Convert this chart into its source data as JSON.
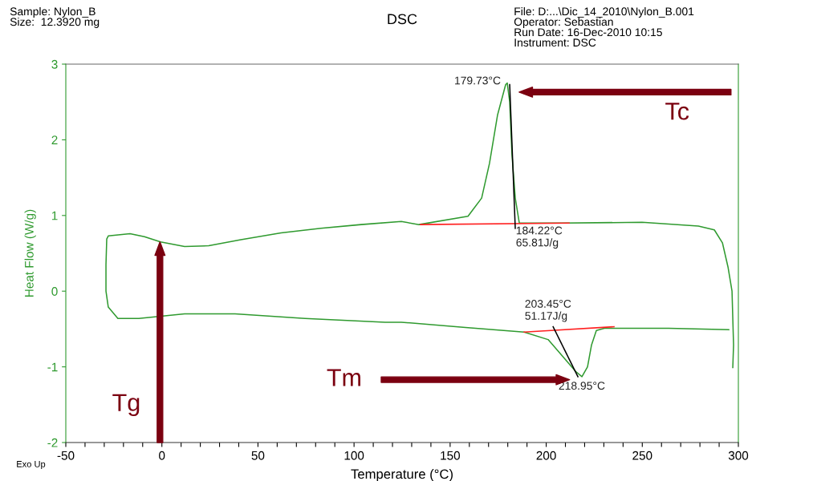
{
  "chart_data": {
    "type": "line",
    "title": "DSC",
    "xlabel": "Temperature (°C)",
    "ylabel": "Heat Flow (W/g)",
    "xlim": [
      -50,
      300
    ],
    "ylim": [
      -2,
      3
    ],
    "xticks": [
      -50,
      {
        "value": -40,
        "label": null
      },
      {
        "value": -30,
        "label": null
      },
      {
        "value": -20,
        "label": null
      },
      {
        "value": -10,
        "label": null
      },
      0,
      {
        "value": 10,
        "label": null
      },
      {
        "value": 20,
        "label": null
      },
      {
        "value": 30,
        "label": null
      },
      {
        "value": 40,
        "label": null
      },
      50,
      {
        "value": 60,
        "label": null
      },
      {
        "value": 70,
        "label": null
      },
      {
        "value": 80,
        "label": null
      },
      {
        "value": 90,
        "label": null
      },
      100,
      {
        "value": 110,
        "label": null
      },
      {
        "value": 120,
        "label": null
      },
      {
        "value": 130,
        "label": null
      },
      {
        "value": 140,
        "label": null
      },
      150,
      {
        "value": 160,
        "label": null
      },
      {
        "value": 170,
        "label": null
      },
      {
        "value": 180,
        "label": null
      },
      {
        "value": 190,
        "label": null
      },
      200,
      {
        "value": 210,
        "label": null
      },
      {
        "value": 220,
        "label": null
      },
      {
        "value": 230,
        "label": null
      },
      {
        "value": 240,
        "label": null
      },
      250,
      {
        "value": 260,
        "label": null
      },
      {
        "value": 270,
        "label": null
      },
      {
        "value": 280,
        "label": null
      },
      {
        "value": 290,
        "label": null
      },
      300
    ],
    "yticks": [
      -2,
      -1,
      0,
      1,
      2,
      3
    ],
    "grid": false,
    "marker": "none",
    "line_style": "solid",
    "series": [
      {
        "color": "#2f9a2f",
        "x": [
          295.0,
          263.7,
          230.3,
          226.1,
          223.6,
          221.5,
          218.6,
          215.3,
          208.2,
          201.0,
          188.5,
          158.0,
          124.6,
          116.2,
          74.5,
          38.1,
          11.8,
          -12.0,
          -22.9,
          -27.9,
          -29.1,
          -29.1,
          -28.7,
          -27.9,
          -16.6,
          -9.1,
          -0.7,
          11.8,
          24.4,
          41.1,
          62.0,
          82.8,
          103.7,
          124.6,
          133.8,
          159.3,
          166.4,
          170.5,
          174.7,
          178.9,
          179.73,
          181.0,
          182.2,
          183.9,
          186.0,
          208.2,
          249.9,
          279.2,
          287.5,
          291.7,
          294.6,
          296.7,
          297.5,
          297.1
        ],
        "values": [
          -0.51,
          -0.49,
          -0.49,
          -0.52,
          -0.71,
          -1.0,
          -1.13,
          -1.06,
          -0.85,
          -0.64,
          -0.54,
          -0.48,
          -0.41,
          -0.41,
          -0.36,
          -0.3,
          -0.3,
          -0.36,
          -0.36,
          -0.21,
          0.0,
          0.35,
          0.69,
          0.73,
          0.76,
          0.72,
          0.65,
          0.59,
          0.6,
          0.68,
          0.77,
          0.83,
          0.88,
          0.92,
          0.88,
          0.99,
          1.23,
          1.69,
          2.33,
          2.73,
          2.75,
          2.5,
          1.8,
          1.23,
          0.9,
          0.9,
          0.91,
          0.86,
          0.81,
          0.64,
          0.32,
          0.0,
          -0.71,
          -1.01
        ]
      },
      {
        "color": "#ff2020",
        "x": [
          134.6,
          211.9
        ],
        "values": [
          0.88,
          0.9
        ]
      },
      {
        "color": "#ff2020",
        "x": [
          188.5,
          235.3
        ],
        "values": [
          -0.54,
          -0.47
        ]
      },
      {
        "color": "#000000",
        "x": [
          181.0,
          183.9
        ],
        "values": [
          2.73,
          0.83
        ]
      },
      {
        "color": "#000000",
        "x": [
          203.6,
          216.5
        ],
        "values": [
          -0.47,
          -1.13
        ]
      }
    ],
    "annotations": [
      {
        "text": "179.73°C",
        "x": 179.73,
        "y": 2.75
      },
      {
        "text": "184.22°C\n65.81J/g",
        "x": 184.22,
        "y": 0.9
      },
      {
        "text": "203.45°C\n51.17J/g",
        "x": 203.45,
        "y": -0.47
      },
      {
        "text": "218.95°C",
        "x": 218.95,
        "y": -1.13
      },
      "Tc",
      "Tm",
      "Tg",
      "Sample: Nylon_B\nSize:  12.3920 mg",
      "File: D:...\\Dic_14_2010\\Nylon_B.001\nOperator: Sebastian\nRun Date: 16-Dec-2010 10:15\nInstrument: DSC",
      "Exo Up"
    ]
  }
}
